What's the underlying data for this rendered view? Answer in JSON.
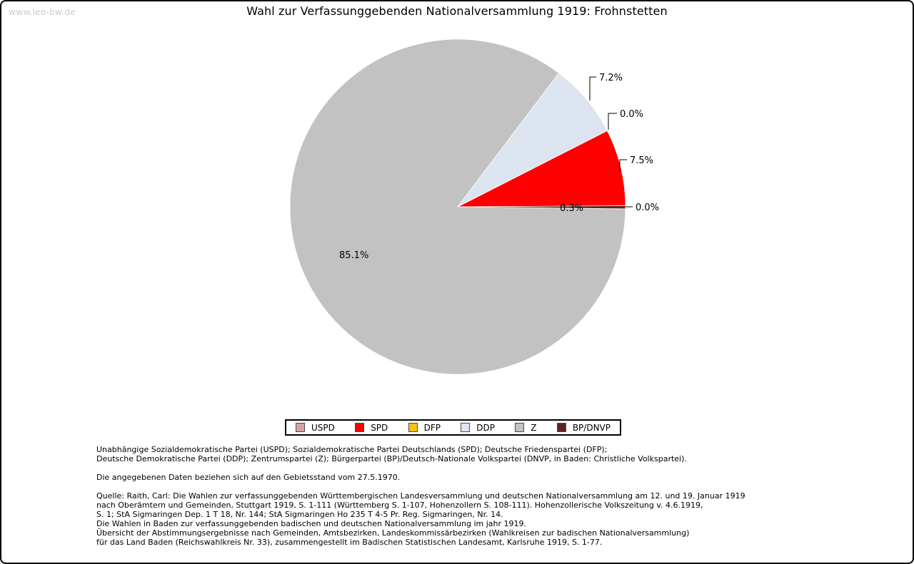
{
  "watermark": "www.leo-bw.de",
  "title": "Wahl zur Verfassunggebenden Nationalversammlung 1919: Frohnstetten",
  "chart_data": {
    "type": "pie",
    "title": "Wahl zur Verfassunggebenden Nationalversammlung 1919: Frohnstetten",
    "unit": "percent",
    "start_angle_deg": 0,
    "direction": "counterclockwise",
    "slices": [
      {
        "label": "USPD",
        "value": 0.0,
        "pct_label": "0.0%",
        "color": "#d9a0a0"
      },
      {
        "label": "SPD",
        "value": 7.5,
        "pct_label": "7.5%",
        "color": "#fe0000"
      },
      {
        "label": "DFP",
        "value": 0.0,
        "pct_label": "0.0%",
        "color": "#fcc013"
      },
      {
        "label": "DDP",
        "value": 7.2,
        "pct_label": "7.2%",
        "color": "#dce4f0"
      },
      {
        "label": "Z",
        "value": 85.1,
        "pct_label": "85.1%",
        "color": "#c2c2c2"
      },
      {
        "label": "BP/DNVP",
        "value": 0.3,
        "pct_label": "0.3%",
        "color": "#5e2222"
      }
    ],
    "legend": [
      "USPD",
      "SPD",
      "DFP",
      "DDP",
      "Z",
      "BP/DNVP"
    ],
    "legend_position": "bottom"
  },
  "footer": {
    "party_lines": [
      "Unabhängige Sozialdemokratische Partei (USPD); Sozialdemokratische Partei Deutschlands (SPD); Deutsche Friedenspartei (DFP);",
      "Deutsche Demokratische Partei (DDP); Zentrumspartei (Z); Bürgerpartei (BP)/Deutsch-Nationale Volkspartei (DNVP, in Baden: Christliche Volkspartei)."
    ],
    "status_line": "Die angegebenen Daten beziehen sich auf den Gebietsstand vom 27.5.1970.",
    "source_lines": [
      "Quelle: Raith, Carl: Die Wahlen zur verfassunggebenden Württembergischen Landesversammlung und deutschen Nationalversammlung am 12. und 19. Januar 1919",
      "nach Oberämtern und Gemeinden, Stuttgart 1919, S. 1-111 (Württemberg S. 1-107, Hohenzollern S. 108-111). Hohenzollerische Volkszeitung v. 4.6.1919,",
      "S. 1; StA Sigmaringen Dep. 1 T 18, Nr. 144; StA Sigmaringen Ho 235 T 4-5 Pr. Reg. Sigmaringen, Nr. 14.",
      "Die Wahlen in Baden zur verfassunggebenden badischen und deutschen Nationalversammlung im jahr 1919.",
      "Übersicht der Abstimmungsergebnisse nach Gemeinden, Amtsbezirken, Landeskommissärbezirken (Wahlkreisen zur badischen Nationalversammlung)",
      "für das Land Baden (Reichswahlkreis Nr. 33), zusammengestellt im Badischen Statistischen Landesamt, Karlsruhe 1919, S. 1-77."
    ]
  }
}
